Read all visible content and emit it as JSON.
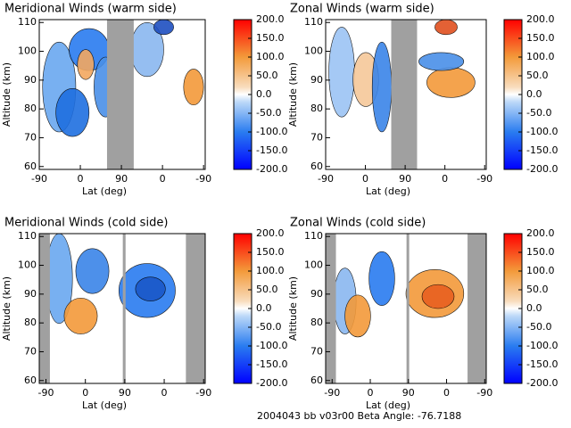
{
  "chart_data": [
    {
      "type": "contour",
      "title": "Meridional Winds (warm side)",
      "x_label": "Lat (deg)",
      "y_label": "Altitude (km)",
      "xlim": [
        0,
        4.04
      ],
      "xticks": [
        {
          "value": 0,
          "label": "-90"
        },
        {
          "value": 1,
          "label": "0"
        },
        {
          "value": 2,
          "label": "90"
        },
        {
          "value": 3,
          "label": "0"
        },
        {
          "value": 4,
          "label": "-90"
        }
      ],
      "ylim": [
        59,
        111
      ],
      "yticks": [
        60,
        70,
        80,
        90,
        100,
        110
      ],
      "gaps": [
        [
          1.65,
          2.3
        ]
      ],
      "clim": [
        -200,
        200
      ],
      "cticks": [
        {
          "value": 200,
          "label": "200.0"
        },
        {
          "value": 150,
          "label": "150.0"
        },
        {
          "value": 100,
          "label": "100.0"
        },
        {
          "value": 50,
          "label": "50.0"
        },
        {
          "value": 0,
          "label": "0.0"
        },
        {
          "value": -50,
          "label": "-50.0"
        },
        {
          "value": -100,
          "label": "-100.0"
        },
        {
          "value": -150,
          "label": "-150.0"
        },
        {
          "value": -200,
          "label": "-200.0"
        }
      ]
    },
    {
      "type": "contour",
      "title": "Zonal Winds (warm side)",
      "x_label": "Lat (deg)",
      "y_label": "Altitude (km)",
      "xlim": [
        0,
        4.04
      ],
      "xticks": [
        {
          "value": 0,
          "label": "-90"
        },
        {
          "value": 1,
          "label": "0"
        },
        {
          "value": 2,
          "label": "90"
        },
        {
          "value": 3,
          "label": "0"
        },
        {
          "value": 4,
          "label": "-90"
        }
      ],
      "ylim": [
        59,
        111
      ],
      "yticks": [
        60,
        70,
        80,
        90,
        100,
        110
      ],
      "gaps": [
        [
          1.65,
          2.3
        ]
      ],
      "clim": [
        -200,
        200
      ],
      "cticks": [
        {
          "value": 200,
          "label": "200.0"
        },
        {
          "value": 150,
          "label": "150.0"
        },
        {
          "value": 100,
          "label": "100.0"
        },
        {
          "value": 50,
          "label": "50.0"
        },
        {
          "value": 0,
          "label": "0.0"
        },
        {
          "value": -50,
          "label": "-50.0"
        },
        {
          "value": -100,
          "label": "-100.0"
        },
        {
          "value": -150,
          "label": "-150.0"
        },
        {
          "value": -200,
          "label": "-200.0"
        }
      ]
    },
    {
      "type": "contour",
      "title": "Meridional Winds (cold side)",
      "x_label": "Lat (deg)",
      "y_label": "Altitude (km)",
      "xlim": [
        -0.17,
        4.04
      ],
      "xticks": [
        {
          "value": 0,
          "label": "-90"
        },
        {
          "value": 1,
          "label": "0"
        },
        {
          "value": 2,
          "label": "90"
        },
        {
          "value": 3,
          "label": "0"
        },
        {
          "value": 4,
          "label": "-90"
        }
      ],
      "ylim": [
        59,
        111
      ],
      "yticks": [
        60,
        70,
        80,
        90,
        100,
        110
      ],
      "gaps": [
        [
          -0.17,
          0.1
        ],
        [
          1.95,
          2.02
        ],
        [
          3.55,
          4.04
        ]
      ],
      "clim": [
        -200,
        200
      ],
      "cticks": [
        {
          "value": 200,
          "label": "200.0"
        },
        {
          "value": 150,
          "label": "150.0"
        },
        {
          "value": 100,
          "label": "100.0"
        },
        {
          "value": 50,
          "label": "50.0"
        },
        {
          "value": 0,
          "label": "0.0"
        },
        {
          "value": -50,
          "label": "-50.0"
        },
        {
          "value": -100,
          "label": "-100.0"
        },
        {
          "value": -150,
          "label": "-150.0"
        },
        {
          "value": -200,
          "label": "-200.0"
        }
      ]
    },
    {
      "type": "contour",
      "title": "Zonal Winds (cold side)",
      "x_label": "Lat (deg)",
      "y_label": "Altitude (km)",
      "xlim": [
        -0.17,
        4.04
      ],
      "xticks": [
        {
          "value": 0,
          "label": "-90"
        },
        {
          "value": 1,
          "label": "0"
        },
        {
          "value": 2,
          "label": "90"
        },
        {
          "value": 3,
          "label": "0"
        },
        {
          "value": 4,
          "label": "-90"
        }
      ],
      "ylim": [
        59,
        111
      ],
      "yticks": [
        60,
        70,
        80,
        90,
        100,
        110
      ],
      "gaps": [
        [
          -0.17,
          0.1
        ],
        [
          1.95,
          2.02
        ],
        [
          3.55,
          4.04
        ]
      ],
      "clim": [
        -200,
        200
      ],
      "cticks": [
        {
          "value": 200,
          "label": "200.0"
        },
        {
          "value": 150,
          "label": "150.0"
        },
        {
          "value": 100,
          "label": "100.0"
        },
        {
          "value": 50,
          "label": "50.0"
        },
        {
          "value": 0,
          "label": "0.0"
        },
        {
          "value": -50,
          "label": "-50.0"
        },
        {
          "value": -100,
          "label": "-100.0"
        },
        {
          "value": -150,
          "label": "-150.0"
        },
        {
          "value": -200,
          "label": "-200.0"
        }
      ]
    }
  ],
  "footer": "2004043 bb v03r00   Beta Angle: -76.7188"
}
